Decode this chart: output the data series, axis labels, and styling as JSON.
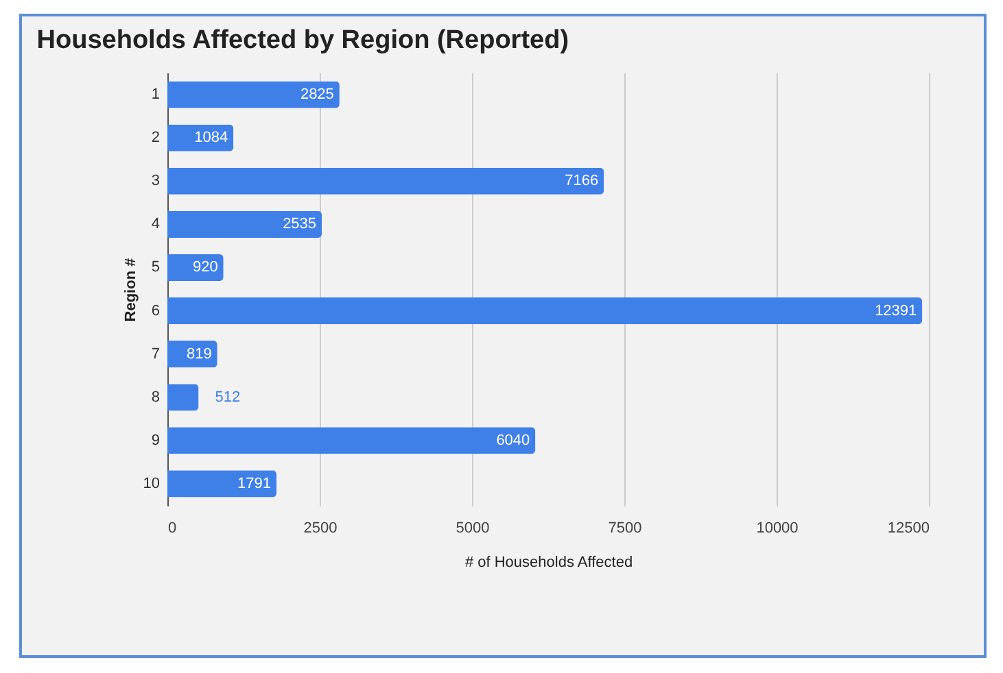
{
  "chart_data": {
    "type": "bar",
    "orientation": "horizontal",
    "title": "Households Affected by Region (Reported)",
    "xlabel": "# of Households Affected",
    "ylabel": "Region #",
    "categories": [
      "1",
      "2",
      "3",
      "4",
      "5",
      "6",
      "7",
      "8",
      "9",
      "10"
    ],
    "values": [
      2825,
      1084,
      7166,
      2535,
      920,
      12391,
      819,
      512,
      6040,
      1791
    ],
    "color": "#3f7fe8",
    "xlim": [
      0,
      12500
    ],
    "xticks": [
      0,
      2500,
      5000,
      7500,
      10000,
      12500
    ],
    "grid": "x",
    "data_labels": true
  }
}
